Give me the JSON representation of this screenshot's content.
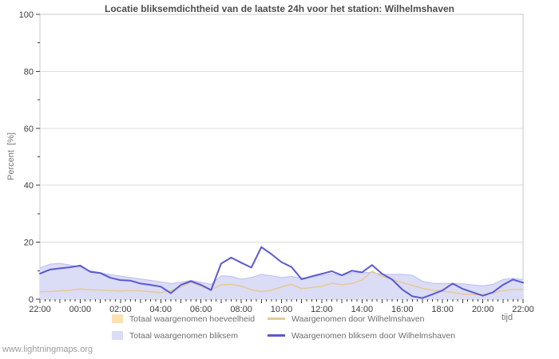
{
  "title": "Locatie bliksemdichtheid van de laatste 24h voor het station: Wilhelmshaven",
  "watermark": "www.lightningmaps.org",
  "colors": {
    "tan_fill": "#fae1b2",
    "tan_fill_edge": "#e6d2ab",
    "purple_fill": "#dbdcf6",
    "purple_fill_edge": "#bcbdf0",
    "tan_line": "#e6ca93",
    "blue_line": "#5a5ad0",
    "grid": "#dddddd",
    "border": "#c9c9c9",
    "tick": "#3c3c3c",
    "axis_text": "#3c3c3c",
    "gray_text": "#757575",
    "title_text": "#4d4d4d",
    "watermark_text": "#9c9c9c"
  },
  "legend": {
    "items": [
      {
        "label": "Totaal waargenomen hoeveelheid",
        "swatch": "area",
        "color_key": "tan_fill"
      },
      {
        "label": "Totaal waargenomen bliksem",
        "swatch": "area",
        "color_key": "purple_fill"
      },
      {
        "label": "Waargenomen door Wilhelmshaven",
        "swatch": "line",
        "color_key": "tan_line"
      },
      {
        "label": "Waargenomen bliksem door Wilhelmshaven",
        "swatch": "line",
        "color_key": "blue_line"
      }
    ]
  },
  "chart_data": {
    "type": "area",
    "title": "Locatie bliksemdichtheid van de laatste 24h voor het station: Wilhelmshaven",
    "xlabel": "tijd",
    "ylabel": "Percent  [%]",
    "ylim": [
      0,
      100
    ],
    "grid": "horizontal",
    "legend_position": "bottom",
    "y_major_ticks": [
      0,
      20,
      40,
      60,
      80,
      100
    ],
    "y_minor_ticks": [
      10,
      30,
      50,
      70,
      90
    ],
    "x_tick_labels": [
      "22:00",
      "00:00",
      "02:00",
      "04:00",
      "06:00",
      "08:00",
      "10:00",
      "12:00",
      "14:00",
      "16:00",
      "18:00",
      "20:00",
      "22:00"
    ],
    "x_tick_label_hours": [
      0,
      2,
      4,
      6,
      8,
      10,
      12,
      14,
      16,
      18,
      20,
      22,
      24
    ],
    "x_minor_tick_step_hours": 0.25,
    "x_hours": [
      0,
      0.5,
      1,
      1.5,
      2,
      2.5,
      3,
      3.5,
      4,
      4.5,
      5,
      5.5,
      6,
      6.5,
      7,
      7.5,
      8,
      8.5,
      9,
      9.5,
      10,
      10.5,
      11,
      11.5,
      12,
      12.5,
      13,
      13.5,
      14,
      14.5,
      15,
      15.5,
      16,
      16.5,
      17,
      17.5,
      18,
      18.5,
      19,
      19.5,
      20,
      20.5,
      21,
      21.5,
      22,
      22.5,
      23,
      23.5,
      24
    ],
    "series": [
      {
        "name": "Totaal waargenomen hoeveelheid",
        "type": "area",
        "color_key": "tan_fill",
        "edge_key": "tan_fill_edge",
        "values": [
          1.4,
          1.3,
          1.3,
          1.4,
          1.5,
          1.4,
          1.3,
          1.3,
          1.2,
          1.2,
          1.2,
          1.1,
          1.1,
          1.0,
          1.1,
          1.2,
          1.1,
          1.0,
          1.3,
          1.3,
          1.2,
          1.1,
          1.1,
          1.1,
          1.2,
          1.2,
          1.1,
          1.1,
          1.2,
          1.3,
          1.2,
          1.2,
          1.3,
          1.4,
          1.3,
          1.2,
          1.1,
          1.0,
          1.0,
          0.9,
          0.9,
          1.0,
          0.9,
          0.9,
          0.9,
          1.0,
          1.1,
          1.2,
          1.2
        ]
      },
      {
        "name": "Totaal waargenomen bliksem",
        "type": "area",
        "color_key": "purple_fill",
        "edge_key": "purple_fill_edge",
        "values": [
          11.0,
          12.3,
          12.6,
          12.0,
          11.3,
          10.0,
          9.3,
          8.6,
          8.1,
          7.6,
          7.1,
          6.6,
          6.1,
          5.5,
          5.9,
          6.6,
          5.9,
          5.2,
          8.2,
          8.0,
          7.0,
          7.6,
          8.7,
          8.2,
          7.6,
          8.0,
          7.4,
          7.8,
          8.4,
          8.9,
          8.2,
          9.3,
          9.3,
          9.4,
          8.7,
          8.7,
          8.7,
          8.4,
          6.3,
          5.6,
          5.5,
          5.5,
          5.4,
          5.0,
          4.7,
          5.2,
          6.9,
          7.3,
          6.9
        ]
      },
      {
        "name": "Waargenomen door Wilhelmshaven",
        "type": "line",
        "color_key": "tan_line",
        "values": [
          2.6,
          2.7,
          2.9,
          3.1,
          3.6,
          3.3,
          3.2,
          3.0,
          2.9,
          3.0,
          2.9,
          2.6,
          2.3,
          3.0,
          4.2,
          6.0,
          4.5,
          3.3,
          5.0,
          5.2,
          4.6,
          3.3,
          2.7,
          3.2,
          4.3,
          5.2,
          3.7,
          4.1,
          4.5,
          5.6,
          5.1,
          5.5,
          6.7,
          9.8,
          8.0,
          6.9,
          5.8,
          4.8,
          3.8,
          3.1,
          2.8,
          2.4,
          1.8,
          1.6,
          1.6,
          2.2,
          3.0,
          3.4,
          3.4
        ]
      },
      {
        "name": "Waargenomen bliksem door Wilhelmshaven",
        "type": "line",
        "color_key": "blue_line",
        "values": [
          9.0,
          10.4,
          10.8,
          11.2,
          11.8,
          9.6,
          9.2,
          7.5,
          6.7,
          6.5,
          5.5,
          5.0,
          4.4,
          2.1,
          5.0,
          6.3,
          5.0,
          3.2,
          12.5,
          14.6,
          12.8,
          11.1,
          18.3,
          15.8,
          13.0,
          11.3,
          7.0,
          8.0,
          8.9,
          9.8,
          8.4,
          10.0,
          9.4,
          12.0,
          8.9,
          6.9,
          3.4,
          1.0,
          0.4,
          1.7,
          3.1,
          5.5,
          3.6,
          2.4,
          1.2,
          2.4,
          5.0,
          6.9,
          5.8
        ]
      }
    ]
  }
}
